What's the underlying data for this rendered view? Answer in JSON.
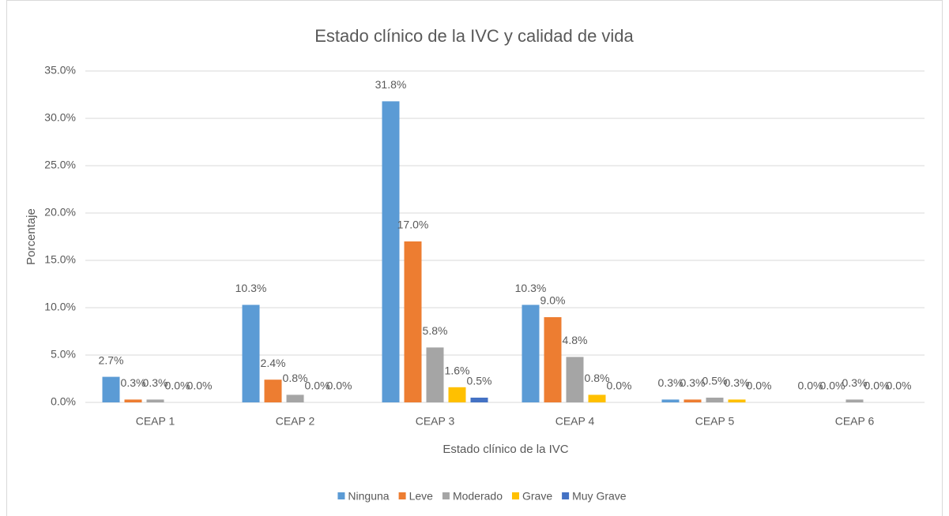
{
  "chart_data": {
    "type": "bar",
    "title": "Estado clínico de la IVC y calidad de vida",
    "x_label": "Estado clínico de la IVC",
    "y_label": "Porcentaje",
    "categories": [
      "CEAP 1",
      "CEAP 2",
      "CEAP 3",
      "CEAP 4",
      "CEAP 5",
      "CEAP 6"
    ],
    "series": [
      {
        "name": "Ninguna",
        "color": "#5b9bd5",
        "values": [
          2.7,
          10.3,
          31.8,
          10.3,
          0.3,
          0.0
        ],
        "value_labels": [
          "2.7%",
          "10.3%",
          "31.8%",
          "10.3%",
          "0.3%",
          "0.0%"
        ]
      },
      {
        "name": "Leve",
        "color": "#ed7d31",
        "values": [
          0.3,
          2.4,
          17.0,
          9.0,
          0.3,
          0.0
        ],
        "value_labels": [
          "0.3%",
          "2.4%",
          "17.0%",
          "9.0%",
          "0.3%",
          "0.0%"
        ]
      },
      {
        "name": "Moderado",
        "color": "#a5a5a5",
        "values": [
          0.3,
          0.8,
          5.8,
          4.8,
          0.5,
          0.3
        ],
        "value_labels": [
          "0.3%",
          "0.8%",
          "5.8%",
          "4.8%",
          "0.5%",
          "0.3%"
        ]
      },
      {
        "name": "Grave",
        "color": "#ffc000",
        "values": [
          0.0,
          0.0,
          1.6,
          0.8,
          0.3,
          0.0
        ],
        "value_labels": [
          "0.0%",
          "0.0%",
          "1.6%",
          "0.8%",
          "0.3%",
          "0.0%"
        ]
      },
      {
        "name": "Muy Grave",
        "color": "#4472c4",
        "values": [
          0.0,
          0.0,
          0.5,
          0.0,
          0.0,
          0.0
        ],
        "value_labels": [
          "0.0%",
          "0.0%",
          "0.5%",
          "0.0%",
          "0.0%",
          "0.0%"
        ]
      }
    ],
    "ylim": [
      0,
      35
    ],
    "yticks": [
      {
        "value": 0,
        "label": "0.0%"
      },
      {
        "value": 5,
        "label": "5.0%"
      },
      {
        "value": 10,
        "label": "10.0%"
      },
      {
        "value": 15,
        "label": "15.0%"
      },
      {
        "value": 20,
        "label": "20.0%"
      },
      {
        "value": 25,
        "label": "25.0%"
      },
      {
        "value": 30,
        "label": "30.0%"
      },
      {
        "value": 35,
        "label": "35.0%"
      }
    ],
    "grid": true,
    "legend": "bottom"
  }
}
